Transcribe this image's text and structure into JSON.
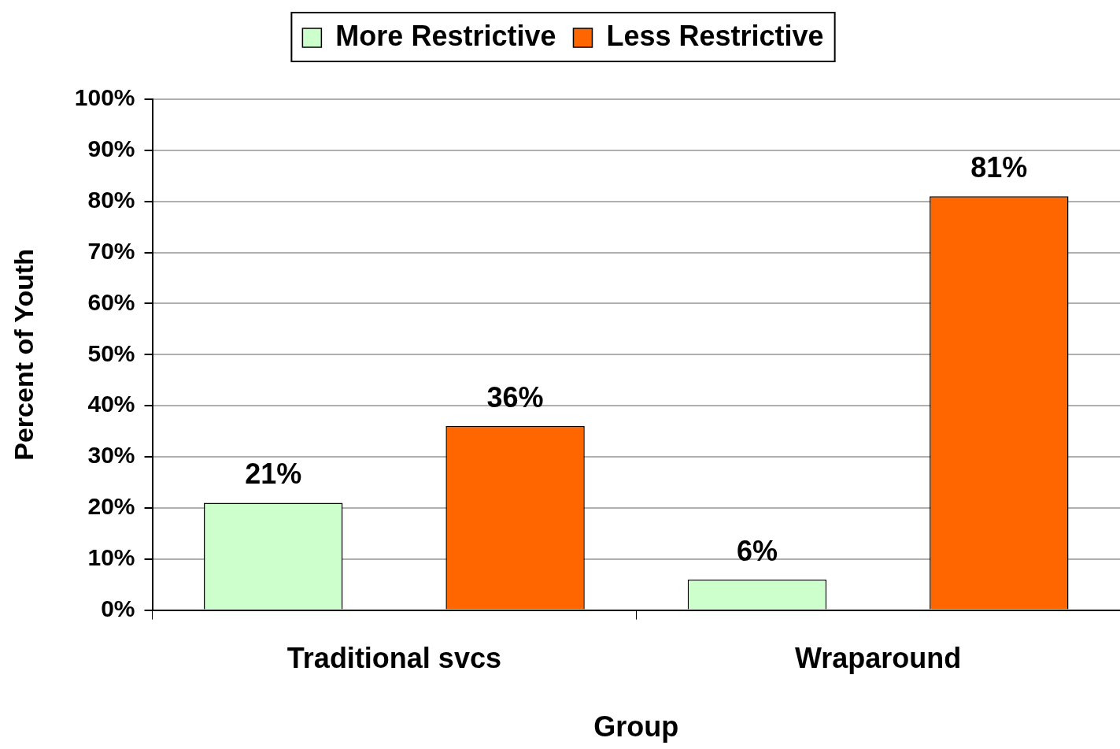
{
  "chart_data": {
    "type": "bar",
    "xlabel": "Group",
    "ylabel": "Percent of Youth",
    "categories": [
      "Traditional svcs",
      "Wraparound"
    ],
    "series": [
      {
        "name": "More Restrictive",
        "color": "#ccffcc",
        "values": [
          21,
          6
        ],
        "value_labels": [
          "21%",
          "6%"
        ]
      },
      {
        "name": "Less Restrictive",
        "color": "#ff6600",
        "values": [
          36,
          81
        ],
        "value_labels": [
          "36%",
          "81%"
        ]
      }
    ],
    "ylim": [
      0,
      100
    ],
    "yticks": [
      {
        "value": 0,
        "label": "0%"
      },
      {
        "value": 10,
        "label": "10%"
      },
      {
        "value": 20,
        "label": "20%"
      },
      {
        "value": 30,
        "label": "30%"
      },
      {
        "value": 40,
        "label": "40%"
      },
      {
        "value": 50,
        "label": "50%"
      },
      {
        "value": 60,
        "label": "60%"
      },
      {
        "value": 70,
        "label": "70%"
      },
      {
        "value": 80,
        "label": "80%"
      },
      {
        "value": 90,
        "label": "90%"
      },
      {
        "value": 100,
        "label": "100%"
      }
    ],
    "grid": "y",
    "legend": "top"
  }
}
